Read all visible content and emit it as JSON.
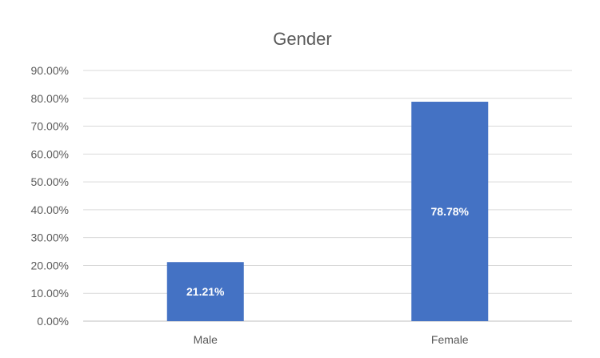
{
  "chart_data": {
    "type": "bar",
    "title": "Gender",
    "categories": [
      "Male",
      "Female"
    ],
    "values": [
      21.21,
      78.78
    ],
    "data_labels": [
      "21.21%",
      "78.78%"
    ],
    "ylim": [
      0,
      90
    ],
    "yticks": [
      0,
      10,
      20,
      30,
      40,
      50,
      60,
      70,
      80,
      90
    ],
    "ytick_labels": [
      "0.00%",
      "10.00%",
      "20.00%",
      "30.00%",
      "40.00%",
      "50.00%",
      "60.00%",
      "70.00%",
      "80.00%",
      "90.00%"
    ],
    "grid": true,
    "legend": "none",
    "bar_color": "#4472C4"
  }
}
